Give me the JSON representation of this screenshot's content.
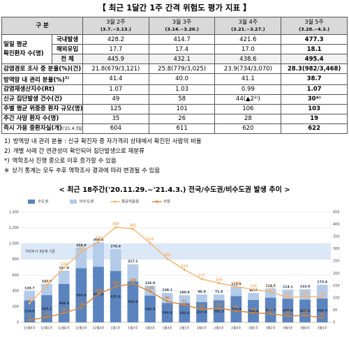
{
  "title": "【 최근 1달간 1주 간격 위험도 평가 지표 】",
  "table": {
    "corner": "구 분",
    "columns": [
      {
        "week": "3월 2주",
        "range": "(3.7.~3.13.)"
      },
      {
        "week": "3월 3주",
        "range": "(3.14.~3.20.)"
      },
      {
        "week": "3월 4주",
        "range": "(3.21.~3.27.)"
      },
      {
        "week": "3월 5주",
        "range": "(3.28.~4.3.)"
      }
    ],
    "group": {
      "label": [
        "일일 평균",
        "확진환자 수(명)"
      ],
      "rows": [
        {
          "label": "국내발생",
          "values": [
            "428.2",
            "414.7",
            "421.6",
            "477.3"
          ]
        },
        {
          "label": "해외유입",
          "values": [
            "17.7",
            "17.4",
            "17.0",
            "18.1"
          ]
        },
        {
          "label": "전 체",
          "values": [
            "445.9",
            "432.1",
            "438.6",
            "495.4"
          ]
        }
      ]
    },
    "rows": [
      {
        "label": "감염경로 조사 중 분율(%)(건)",
        "values": [
          "21.8(679/3,121)",
          "25.8(779/3,025)",
          "23.9(734/3,070)",
          "28.3(982/3,468)"
        ]
      },
      {
        "label": "방역망 내 관리 분율(%)",
        "note": "1)",
        "values": [
          "41.4",
          "40.0",
          "41.1",
          "38.7"
        ]
      },
      {
        "label": "감염재생산지수(Rt)",
        "values": [
          "1.07",
          "1.03",
          "0.99",
          "1.07"
        ]
      },
      {
        "label": "신규 집단발생 건수(건)",
        "values": [
          "49",
          "58",
          "44(▲2²⁾)",
          "30*⁾"
        ]
      },
      {
        "label": "주별 평균 위중증 환자 규모(명)",
        "values": [
          "125",
          "101",
          "106",
          "103"
        ]
      },
      {
        "label": "주간 사망 환자 수(명)",
        "values": [
          "35",
          "26",
          "28",
          "19"
        ]
      },
      {
        "label": "즉시 가용 중환자실(개)",
        "note": "('21.4.3일 9시 기준)",
        "values": [
          "604",
          "611",
          "620",
          "622"
        ]
      }
    ]
  },
  "notes": [
    {
      "mark": "1)",
      "text": "방역망 내 관리 분율 : 신규 확진자 중 자가격리 상태에서 확진된 사람의 비율"
    },
    {
      "mark": "2)",
      "text": "개별 사례 간 연관성이 확인되어 집단발생으로 재분류"
    },
    {
      "mark": "*)",
      "text": "역학조사 진행 중으로 이후 증가할 수 있음"
    },
    {
      "mark": "※",
      "text": "상기 통계는 모두 추후 역학조사 결과에 따라 변경될 수 있음"
    }
  ],
  "chart_data": {
    "type": "combo",
    "title": "< 최근 18주간('20.11.29.~'21.4.3.) 전국/수도권/비수도권 발생 추이 >",
    "categories": [
      "11월4주",
      "12월1주",
      "12월2주",
      "12월3주",
      "12월4주",
      "1월1주",
      "1월2주",
      "1월3주",
      "1월4주",
      "2월1주",
      "2월2주",
      "2월3주",
      "2월4주",
      "3월1주",
      "3월2주",
      "3월3주",
      "3월4주",
      "3월5주"
    ],
    "stacked": true,
    "series": [
      {
        "name": "수도권",
        "type": "bar",
        "color": "#5b84bf",
        "values": [
          279.9,
          345.1,
          488.4,
          686.8,
          707.0,
          651.4,
          520.9,
          340.5,
          246.4,
          243.6,
          257.0,
          281.3,
          334.9,
          284.4,
          313.7,
          300.6,
          288.6,
          303.9
        ],
        "value_labels": [
          "279.9",
          "345.1",
          "488.4",
          "686.8",
          "707.0",
          "651.4",
          "520.9",
          "340.5",
          "246.4",
          "243.6",
          "257.0",
          "281.3",
          "334.9",
          "284.4",
          "313.7",
          "300.6",
          "288.6",
          "303.9"
        ]
      },
      {
        "name": "비수도권",
        "type": "bar",
        "color": "#b4cbe9",
        "values": [
          120.7,
          142.5,
          167.8,
          258.9,
          308.4,
          278.9,
          217.1,
          126.0,
          128.1,
          100.8,
          96.9,
          71.8,
          118.0,
          89.7,
          114.5,
          114.1,
          133.0,
          173.4
        ],
        "value_labels": [
          "120.7",
          "142.5",
          "167.8",
          "258.9",
          "308.4",
          "278.9",
          "217.1",
          "126.0",
          "128.1",
          "100.8",
          "96.9",
          "71.8",
          "118.0",
          "89.7",
          "114.5",
          "114.1",
          "133.0",
          "173.4"
        ]
      },
      {
        "name": "평균위중증",
        "type": "line",
        "axis": "y2",
        "color": "#f6b26b",
        "values": [
          78,
          151,
          223,
          287,
          330,
          388,
          382,
          324,
          260,
          215,
          177,
          160,
          146,
          134,
          125,
          101,
          106,
          103
        ]
      },
      {
        "name": "사망",
        "type": "line",
        "axis": "y2",
        "color": "#d9822b",
        "values": [
          9,
          21,
          38,
          60,
          116,
          146,
          158,
          126,
          86,
          71,
          53,
          58,
          47,
          39,
          35,
          26,
          28,
          19
        ]
      }
    ],
    "ylim": [
      0,
      1400
    ],
    "yticks": [
      0,
      200,
      400,
      600,
      800,
      {
        "value": 1000,
        "label": "1,000"
      },
      {
        "value": 1200,
        "label": "1,200"
      },
      {
        "value": 1400,
        "label": "1,400"
      }
    ],
    "y2lim": [
      0,
      450
    ],
    "y2ticks": [
      0,
      50,
      100,
      150,
      200,
      250,
      300,
      350,
      400,
      450
    ],
    "grid": true,
    "band": {
      "label": "거리두기 3단계 기준",
      "range": [
        800,
        1000
      ],
      "color": "#dbe8f7"
    },
    "legend": "top"
  }
}
